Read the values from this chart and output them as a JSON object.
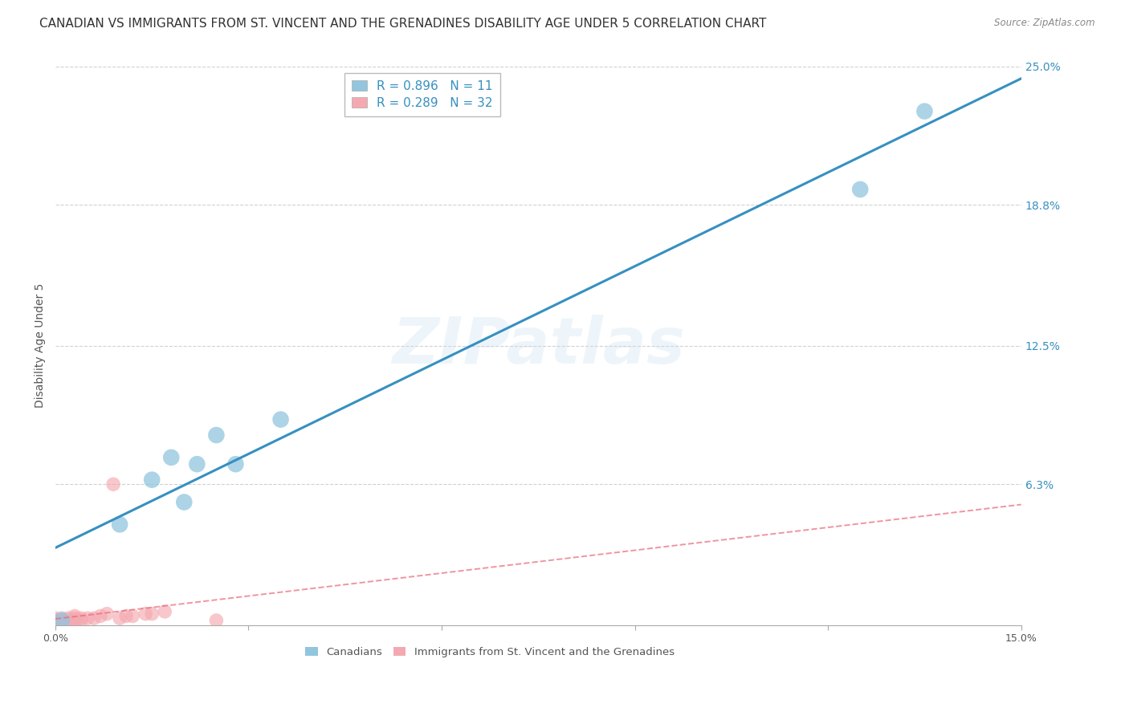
{
  "title": "CANADIAN VS IMMIGRANTS FROM ST. VINCENT AND THE GRENADINES DISABILITY AGE UNDER 5 CORRELATION CHART",
  "source": "Source: ZipAtlas.com",
  "ylabel": "Disability Age Under 5",
  "xlim": [
    0.0,
    0.15
  ],
  "ylim": [
    0.0,
    0.25
  ],
  "xtick_positions": [
    0.0,
    0.03,
    0.06,
    0.09,
    0.12,
    0.15
  ],
  "xticklabels": [
    "0.0%",
    "",
    "",
    "",
    "",
    "15.0%"
  ],
  "ytick_vals": [
    0.0,
    0.063,
    0.125,
    0.188,
    0.25
  ],
  "ytick_labels_right": [
    "",
    "6.3%",
    "12.5%",
    "18.8%",
    "25.0%"
  ],
  "canadians_x": [
    0.001,
    0.01,
    0.015,
    0.018,
    0.02,
    0.022,
    0.025,
    0.028,
    0.035,
    0.125,
    0.135
  ],
  "canadians_y": [
    0.002,
    0.045,
    0.065,
    0.075,
    0.055,
    0.072,
    0.085,
    0.072,
    0.092,
    0.195,
    0.23
  ],
  "immigrants_x": [
    0.0,
    0.0,
    0.0,
    0.0,
    0.0,
    0.0,
    0.0,
    0.001,
    0.001,
    0.001,
    0.001,
    0.002,
    0.002,
    0.002,
    0.003,
    0.003,
    0.003,
    0.003,
    0.004,
    0.004,
    0.005,
    0.006,
    0.007,
    0.008,
    0.009,
    0.01,
    0.011,
    0.012,
    0.014,
    0.015,
    0.017,
    0.025
  ],
  "immigrants_y": [
    0.0,
    0.0,
    0.001,
    0.001,
    0.002,
    0.002,
    0.003,
    0.001,
    0.002,
    0.002,
    0.003,
    0.001,
    0.002,
    0.003,
    0.001,
    0.002,
    0.003,
    0.004,
    0.002,
    0.003,
    0.003,
    0.003,
    0.004,
    0.005,
    0.063,
    0.003,
    0.004,
    0.004,
    0.005,
    0.005,
    0.006,
    0.002
  ],
  "canadian_color": "#92c5de",
  "immigrant_color": "#f4a9b0",
  "canadian_line_color": "#3690c0",
  "immigrant_line_color": "#e8697a",
  "R_canadian": 0.896,
  "N_canadian": 11,
  "R_immigrant": 0.289,
  "N_immigrant": 32,
  "watermark_text": "ZIPatlas",
  "grid_color": "#dddddd",
  "background_color": "#ffffff",
  "title_fontsize": 11,
  "axis_label_fontsize": 10,
  "tick_fontsize": 9,
  "legend_fontsize": 10
}
